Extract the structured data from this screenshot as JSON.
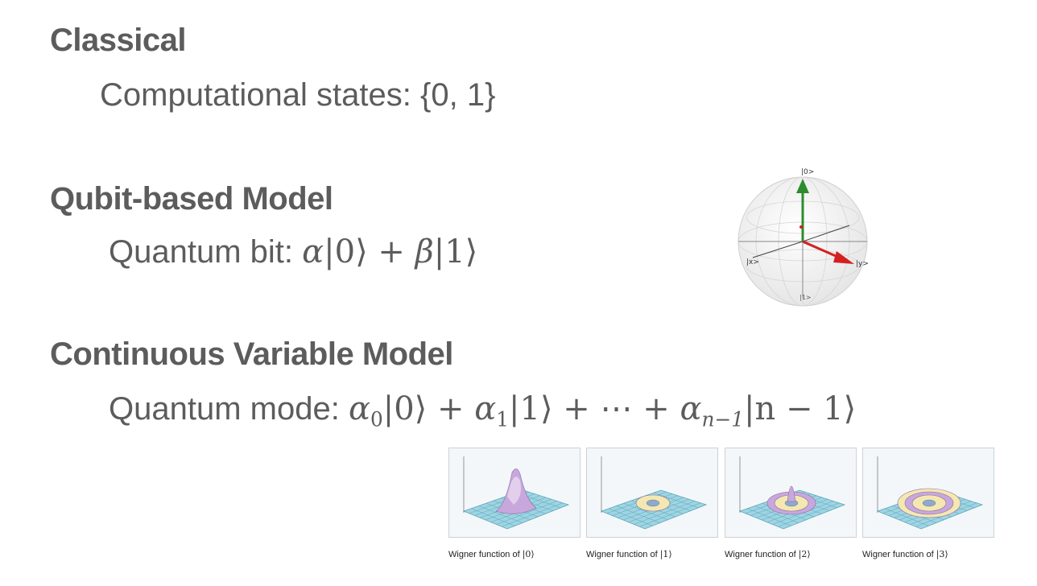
{
  "sections": {
    "classical": {
      "heading": "Classical",
      "line": "Computational states: {0, 1}"
    },
    "qubit": {
      "heading": "Qubit-based Model",
      "prefix": "Quantum bit: ",
      "formula": {
        "a": "α",
        "k0": "|0⟩",
        "plus": "+",
        "b": "β",
        "k1": "|1⟩"
      }
    },
    "cv": {
      "heading": "Continuous Variable Model",
      "prefix": "Quantum mode: ",
      "formula": {
        "a": "α",
        "s0": "0",
        "k0": "|0⟩",
        "plus1": "+",
        "s1": "1",
        "k1": "|1⟩",
        "plus2": "+",
        "dots": "⋯",
        "plus3": "+",
        "sn": "n−1",
        "kn": "|n − 1⟩"
      }
    }
  },
  "bloch": {
    "label_top": "|0>",
    "label_x": "|x>",
    "label_y": "|y>",
    "label_bottom": "|1>",
    "colors": {
      "z_axis": "#2e8b2e",
      "vector": "#d42020",
      "sphere": "#e9e9e9"
    }
  },
  "wigner": [
    {
      "caption": "Wigner function of ",
      "ket": "|0⟩"
    },
    {
      "caption": "Wigner function of ",
      "ket": "|1⟩"
    },
    {
      "caption": "Wigner function of ",
      "ket": "|2⟩"
    },
    {
      "caption": "Wigner function of ",
      "ket": "|3⟩"
    }
  ]
}
